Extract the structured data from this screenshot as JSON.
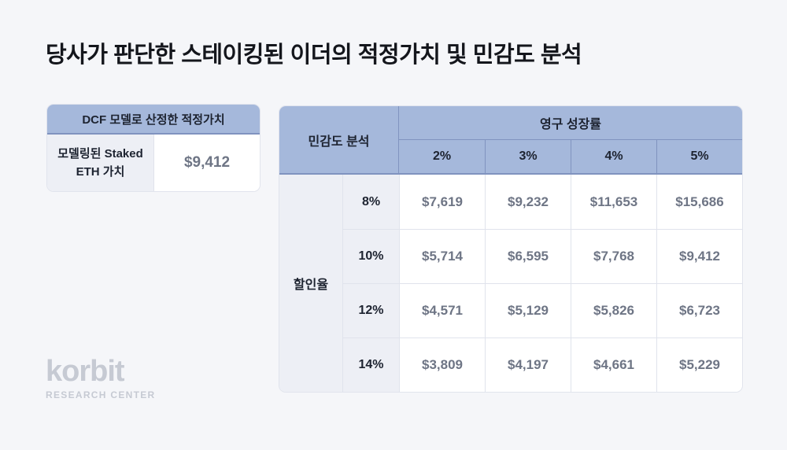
{
  "page": {
    "title": "당사가 판단한 스테이킹된 이더의 적정가치 및 민감도 분석",
    "background": "#f5f6f9"
  },
  "colors": {
    "header_blue": "#a5b8db",
    "header_border": "#8093bf",
    "label_bg": "#edeff5",
    "cell_border": "#e0e3ec",
    "value_text": "#6e7585",
    "dark_text": "#1d2330",
    "logo_gray": "#c6cad3"
  },
  "dcf_box": {
    "header": "DCF 모델로 산정한 적정가치",
    "row_label": "모델링된 Staked ETH 가치",
    "value": "$9,412"
  },
  "sensitivity": {
    "corner_label": "민감도 분석",
    "col_group_label": "영구 성장률",
    "row_group_label": "할인율",
    "col_headers": [
      "2%",
      "3%",
      "4%",
      "5%"
    ],
    "rows": [
      {
        "label": "8%",
        "values": [
          "$7,619",
          "$9,232",
          "$11,653",
          "$15,686"
        ]
      },
      {
        "label": "10%",
        "values": [
          "$5,714",
          "$6,595",
          "$7,768",
          "$9,412"
        ]
      },
      {
        "label": "12%",
        "values": [
          "$4,571",
          "$5,129",
          "$5,826",
          "$6,723"
        ]
      },
      {
        "label": "14%",
        "values": [
          "$3,809",
          "$4,197",
          "$4,661",
          "$5,229"
        ]
      }
    ]
  },
  "logo": {
    "brand": "korbit",
    "sub": "RESEARCH CENTER"
  },
  "chart_data": [
    {
      "type": "table",
      "title": "DCF 모델로 산정한 적정가치",
      "rows": [
        [
          "모델링된 Staked ETH 가치",
          9412
        ]
      ],
      "unit": "USD"
    },
    {
      "type": "table",
      "title": "민감도 분석",
      "column_group": "영구 성장률",
      "row_group": "할인율",
      "columns": [
        "2%",
        "3%",
        "4%",
        "5%"
      ],
      "row_labels": [
        "8%",
        "10%",
        "12%",
        "14%"
      ],
      "values": [
        [
          7619,
          9232,
          11653,
          15686
        ],
        [
          5714,
          6595,
          7768,
          9412
        ],
        [
          4571,
          5129,
          5826,
          6723
        ],
        [
          3809,
          4197,
          4661,
          5229
        ]
      ],
      "unit": "USD"
    }
  ]
}
